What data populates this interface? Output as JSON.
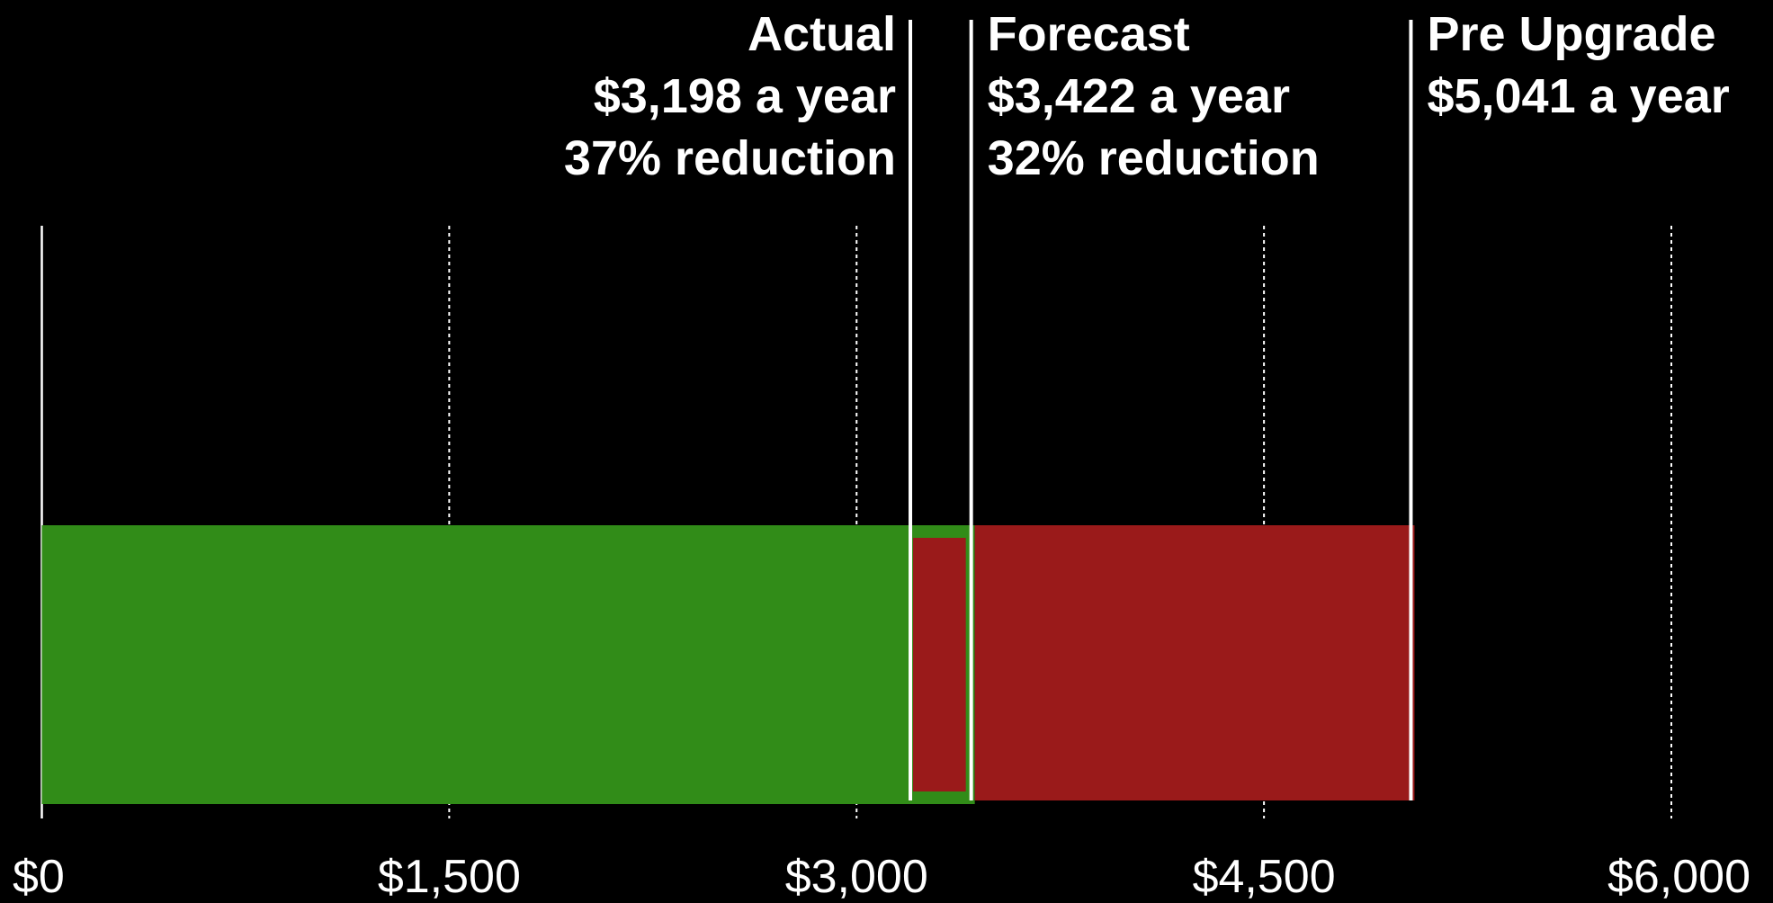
{
  "chart_data": {
    "type": "bar",
    "markers": [
      {
        "name": "Actual",
        "value": 3198,
        "value_label": "$3,198 a year",
        "reduction": {
          "value": 37,
          "label": "37% reduction"
        }
      },
      {
        "name": "Forecast",
        "value": 3422,
        "value_label": "$3,422 a year",
        "reduction": {
          "value": 32,
          "label": "32% reduction"
        }
      },
      {
        "name": "Pre Upgrade",
        "value": 5041,
        "value_label": "$5,041 a year"
      }
    ],
    "colors": {
      "saved": "#318c18",
      "spent": "#9a1a1a"
    },
    "xlim": [
      0,
      6000
    ],
    "xticks": [
      {
        "value": 0,
        "label": "$0"
      },
      {
        "value": 1500,
        "label": "$1,500"
      },
      {
        "value": 3000,
        "label": "$3,000"
      },
      {
        "value": 4500,
        "label": "$4,500"
      },
      {
        "value": 6000,
        "label": "$6,000"
      }
    ],
    "grid": true
  }
}
